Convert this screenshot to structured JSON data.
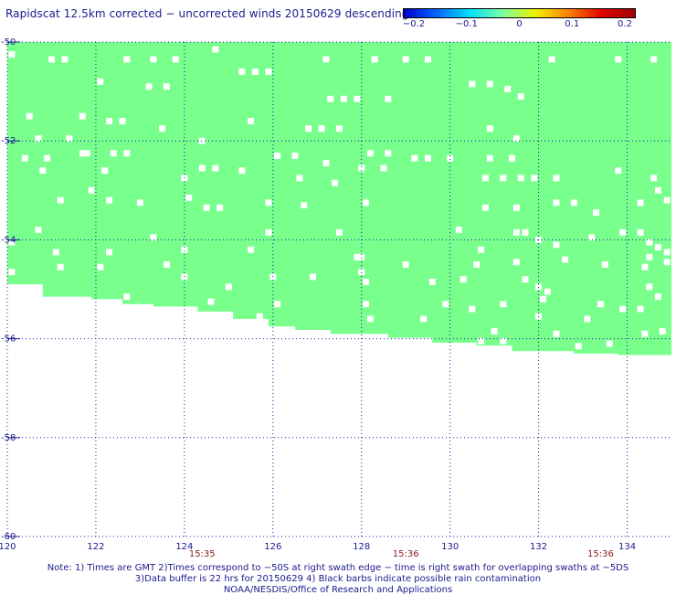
{
  "title": "Rapidscat 12.5km corrected − uncorrected winds 20150629 descending",
  "colorbar": {
    "colors": [
      "#0000c8",
      "#0066ff",
      "#00e0ff",
      "#7dffa0",
      "#f0f000",
      "#ff8000",
      "#e00000",
      "#a00000"
    ],
    "ticks": [
      "−0.2",
      "−0.1",
      "0",
      "0.1",
      "0.2"
    ],
    "range": [
      -0.2,
      0.2
    ]
  },
  "chart_data": {
    "type": "heatmap",
    "title": "Rapidscat 12.5km corrected − uncorrected winds 20150629 descending",
    "xlim": [
      120,
      135
    ],
    "ylim": [
      -60,
      -50
    ],
    "x_ticks": [
      "120",
      "122",
      "124",
      "126",
      "128",
      "130",
      "132",
      "134"
    ],
    "y_ticks": [
      "-50",
      "-52",
      "-54",
      "-56",
      "-58",
      "-60"
    ],
    "time_labels": [
      {
        "lon": 124.4,
        "text": "15:35"
      },
      {
        "lon": 129.0,
        "text": "15:36"
      },
      {
        "lon": 133.4,
        "text": "15:36"
      }
    ],
    "fill_color": "#78ff8c",
    "fill_value": 0.0,
    "swath_south_edge": [
      {
        "lon": 120.0,
        "lat": -54.8
      },
      {
        "lon": 120.8,
        "lat": -54.9
      },
      {
        "lon": 121.9,
        "lat": -55.15
      },
      {
        "lon": 122.6,
        "lat": -55.2
      },
      {
        "lon": 123.3,
        "lat": -55.3
      },
      {
        "lon": 124.3,
        "lat": -55.35
      },
      {
        "lon": 125.1,
        "lat": -55.45
      },
      {
        "lon": 125.9,
        "lat": -55.6
      },
      {
        "lon": 126.5,
        "lat": -55.75
      },
      {
        "lon": 127.3,
        "lat": -55.82
      },
      {
        "lon": 128.6,
        "lat": -55.9
      },
      {
        "lon": 129.6,
        "lat": -55.98
      },
      {
        "lon": 130.6,
        "lat": -56.08
      },
      {
        "lon": 131.4,
        "lat": -56.14
      },
      {
        "lon": 132.8,
        "lat": -56.25
      },
      {
        "lon": 133.8,
        "lat": -56.3
      },
      {
        "lon": 135.0,
        "lat": -56.33
      }
    ],
    "missing_cells": [
      [
        120.1,
        -50.25
      ],
      [
        121.0,
        -50.35
      ],
      [
        121.3,
        -50.35
      ],
      [
        122.7,
        -50.35
      ],
      [
        123.3,
        -50.35
      ],
      [
        123.8,
        -50.35
      ],
      [
        124.7,
        -50.15
      ],
      [
        125.3,
        -50.6
      ],
      [
        125.6,
        -50.6
      ],
      [
        125.9,
        -50.6
      ],
      [
        127.2,
        -50.35
      ],
      [
        128.3,
        -50.35
      ],
      [
        129.0,
        -50.35
      ],
      [
        129.5,
        -50.35
      ],
      [
        130.5,
        -50.85
      ],
      [
        130.9,
        -50.85
      ],
      [
        131.3,
        -50.95
      ],
      [
        131.6,
        -51.1
      ],
      [
        132.3,
        -50.35
      ],
      [
        133.8,
        -50.35
      ],
      [
        134.6,
        -50.35
      ],
      [
        122.1,
        -50.8
      ],
      [
        123.2,
        -50.9
      ],
      [
        123.6,
        -50.9
      ],
      [
        127.3,
        -51.15
      ],
      [
        127.6,
        -51.15
      ],
      [
        127.9,
        -51.15
      ],
      [
        128.6,
        -51.15
      ],
      [
        120.5,
        -51.5
      ],
      [
        121.7,
        -51.5
      ],
      [
        122.3,
        -51.6
      ],
      [
        122.6,
        -51.6
      ],
      [
        123.5,
        -51.75
      ],
      [
        125.5,
        -51.6
      ],
      [
        126.8,
        -51.75
      ],
      [
        127.1,
        -51.75
      ],
      [
        127.5,
        -51.75
      ],
      [
        130.9,
        -51.75
      ],
      [
        131.5,
        -51.95
      ],
      [
        120.7,
        -51.95
      ],
      [
        121.4,
        -51.95
      ],
      [
        121.7,
        -52.25
      ],
      [
        122.4,
        -52.25
      ],
      [
        122.7,
        -52.25
      ],
      [
        124.4,
        -52.0
      ],
      [
        126.1,
        -52.3
      ],
      [
        126.5,
        -52.3
      ],
      [
        127.2,
        -52.45
      ],
      [
        128.2,
        -52.25
      ],
      [
        128.6,
        -52.25
      ],
      [
        129.2,
        -52.35
      ],
      [
        129.5,
        -52.35
      ],
      [
        130.0,
        -52.35
      ],
      [
        130.9,
        -52.35
      ],
      [
        131.4,
        -52.35
      ],
      [
        120.4,
        -52.35
      ],
      [
        120.9,
        -52.35
      ],
      [
        121.8,
        -52.25
      ],
      [
        120.8,
        -52.6
      ],
      [
        122.2,
        -52.6
      ],
      [
        124.0,
        -52.75
      ],
      [
        124.4,
        -52.55
      ],
      [
        124.7,
        -52.55
      ],
      [
        125.3,
        -52.6
      ],
      [
        126.6,
        -52.75
      ],
      [
        127.4,
        -52.85
      ],
      [
        128.0,
        -52.55
      ],
      [
        128.5,
        -52.55
      ],
      [
        130.8,
        -52.75
      ],
      [
        131.2,
        -52.75
      ],
      [
        131.6,
        -52.75
      ],
      [
        131.9,
        -52.75
      ],
      [
        132.4,
        -52.75
      ],
      [
        133.8,
        -52.6
      ],
      [
        134.6,
        -52.75
      ],
      [
        121.2,
        -53.2
      ],
      [
        121.9,
        -53.0
      ],
      [
        122.3,
        -53.2
      ],
      [
        123.0,
        -53.25
      ],
      [
        124.1,
        -53.15
      ],
      [
        124.5,
        -53.35
      ],
      [
        124.8,
        -53.35
      ],
      [
        125.9,
        -53.25
      ],
      [
        126.7,
        -53.3
      ],
      [
        128.1,
        -53.25
      ],
      [
        130.8,
        -53.35
      ],
      [
        131.5,
        -53.35
      ],
      [
        132.4,
        -53.25
      ],
      [
        132.8,
        -53.25
      ],
      [
        133.3,
        -53.45
      ],
      [
        134.3,
        -53.25
      ],
      [
        134.7,
        -53.0
      ],
      [
        134.9,
        -53.2
      ],
      [
        120.7,
        -53.8
      ],
      [
        123.3,
        -53.95
      ],
      [
        125.9,
        -53.85
      ],
      [
        127.5,
        -53.85
      ],
      [
        130.2,
        -53.8
      ],
      [
        131.5,
        -53.85
      ],
      [
        131.7,
        -53.85
      ],
      [
        132.0,
        -54.0
      ],
      [
        132.4,
        -54.1
      ],
      [
        133.2,
        -53.95
      ],
      [
        133.9,
        -53.85
      ],
      [
        134.3,
        -53.85
      ],
      [
        134.5,
        -54.05
      ],
      [
        134.7,
        -54.15
      ],
      [
        134.9,
        -54.25
      ],
      [
        134.5,
        -54.35
      ],
      [
        120.1,
        -54.05
      ],
      [
        121.1,
        -54.25
      ],
      [
        122.3,
        -54.25
      ],
      [
        124.0,
        -54.2
      ],
      [
        125.5,
        -54.2
      ],
      [
        127.9,
        -54.35
      ],
      [
        128.0,
        -54.35
      ],
      [
        130.7,
        -54.2
      ],
      [
        131.5,
        -54.45
      ],
      [
        132.6,
        -54.4
      ],
      [
        134.9,
        -54.45
      ],
      [
        121.2,
        -54.55
      ],
      [
        122.1,
        -54.55
      ],
      [
        123.6,
        -54.5
      ],
      [
        124.0,
        -54.75
      ],
      [
        128.0,
        -54.65
      ],
      [
        129.0,
        -54.5
      ],
      [
        130.6,
        -54.5
      ],
      [
        133.5,
        -54.5
      ],
      [
        134.4,
        -54.55
      ],
      [
        120.1,
        -54.65
      ],
      [
        125.0,
        -54.95
      ],
      [
        126.0,
        -54.75
      ],
      [
        126.9,
        -54.75
      ],
      [
        128.1,
        -54.85
      ],
      [
        129.6,
        -54.85
      ],
      [
        130.3,
        -54.8
      ],
      [
        131.7,
        -54.8
      ],
      [
        132.0,
        -54.95
      ],
      [
        134.5,
        -54.95
      ],
      [
        134.7,
        -55.15
      ],
      [
        132.2,
        -55.05
      ],
      [
        122.7,
        -55.15
      ],
      [
        124.6,
        -55.25
      ],
      [
        126.1,
        -55.3
      ],
      [
        128.1,
        -55.3
      ],
      [
        129.9,
        -55.3
      ],
      [
        130.5,
        -55.4
      ],
      [
        131.2,
        -55.3
      ],
      [
        132.1,
        -55.2
      ],
      [
        133.4,
        -55.3
      ],
      [
        133.9,
        -55.4
      ],
      [
        134.3,
        -55.4
      ],
      [
        125.7,
        -55.55
      ],
      [
        128.2,
        -55.6
      ],
      [
        129.4,
        -55.6
      ],
      [
        132.0,
        -55.55
      ],
      [
        133.1,
        -55.6
      ],
      [
        131.0,
        -55.85
      ],
      [
        132.4,
        -55.9
      ],
      [
        134.4,
        -55.9
      ],
      [
        134.8,
        -55.85
      ],
      [
        130.7,
        -56.05
      ],
      [
        131.2,
        -56.05
      ],
      [
        132.9,
        -56.15
      ],
      [
        133.6,
        -56.1
      ]
    ],
    "grid": "dotted",
    "legend": "none"
  },
  "notes": [
    "Note: 1) Times are GMT 2)Times correspond to −50S at right swath edge − time is right swath for overlapping swaths at −5DS",
    "3)Data buffer is 22 hrs for 20150629 4) Black barbs indicate possible rain contamination",
    "NOAA/NESDIS/Office of Research and Applications"
  ]
}
